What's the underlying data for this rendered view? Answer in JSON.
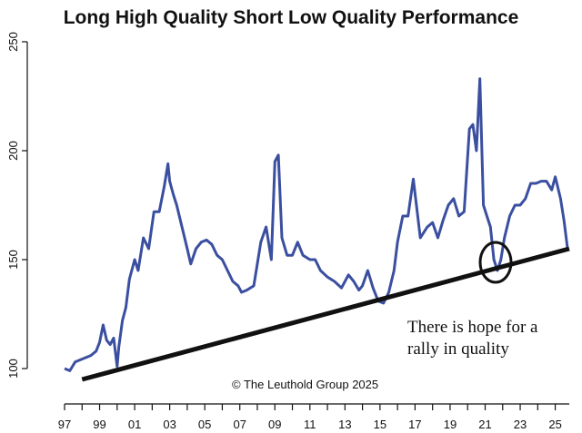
{
  "chart_data": {
    "type": "line",
    "title": "Long High Quality Short Low Quality Performance",
    "xlabel": "",
    "ylabel": "",
    "xlim": [
      1997.0,
      2025.8
    ],
    "ylim": [
      100,
      250
    ],
    "y_ticks": [
      100,
      150,
      200,
      250
    ],
    "x_tick_labels": [
      "97",
      "99",
      "01",
      "03",
      "05",
      "07",
      "09",
      "11",
      "13",
      "15",
      "17",
      "19",
      "21",
      "23",
      "25"
    ],
    "x_tick_positions": [
      1997,
      1999,
      2001,
      2003,
      2005,
      2007,
      2009,
      2011,
      2013,
      2015,
      2017,
      2019,
      2021,
      2023,
      2025
    ],
    "series": [
      {
        "color": "#3b4fa0",
        "x": [
          1997.0,
          1997.3,
          1997.6,
          1997.9,
          1998.2,
          1998.5,
          1998.8,
          1999.0,
          1999.2,
          1999.4,
          1999.6,
          1999.8,
          2000.0,
          2000.1,
          2000.3,
          2000.5,
          2000.7,
          2001.0,
          2001.2,
          2001.5,
          2001.8,
          2002.1,
          2002.4,
          2002.7,
          2002.9,
          2003.0,
          2003.2,
          2003.4,
          2003.7,
          2004.0,
          2004.2,
          2004.5,
          2004.8,
          2005.1,
          2005.4,
          2005.7,
          2006.0,
          2006.3,
          2006.6,
          2006.9,
          2007.1,
          2007.4,
          2007.8,
          2008.2,
          2008.5,
          2008.8,
          2009.0,
          2009.2,
          2009.4,
          2009.7,
          2010.0,
          2010.3,
          2010.6,
          2011.0,
          2011.3,
          2011.6,
          2012.0,
          2012.4,
          2012.8,
          2013.2,
          2013.5,
          2013.8,
          2014.0,
          2014.3,
          2014.6,
          2014.9,
          2015.2,
          2015.5,
          2015.8,
          2016.0,
          2016.3,
          2016.6,
          2016.9,
          2017.3,
          2017.7,
          2018.0,
          2018.3,
          2018.6,
          2018.9,
          2019.2,
          2019.5,
          2019.8,
          2020.1,
          2020.3,
          2020.5,
          2020.7,
          2020.9,
          2021.1,
          2021.3,
          2021.5,
          2021.7,
          2021.9,
          2022.1,
          2022.4,
          2022.7,
          2023.0,
          2023.3,
          2023.6,
          2023.9,
          2024.2,
          2024.5,
          2024.8,
          2025.0,
          2025.3,
          2025.5,
          2025.7
        ],
        "y": [
          100,
          99,
          103,
          104,
          105,
          106,
          108,
          112,
          120,
          113,
          111,
          114,
          101,
          110,
          122,
          128,
          141,
          150,
          145,
          160,
          155,
          172,
          172,
          184,
          194,
          186,
          180,
          175,
          165,
          155,
          148,
          155,
          158,
          159,
          157,
          152,
          150,
          145,
          140,
          138,
          135,
          136,
          138,
          158,
          165,
          150,
          195,
          198,
          160,
          152,
          152,
          158,
          152,
          150,
          150,
          145,
          142,
          140,
          137,
          143,
          140,
          136,
          138,
          145,
          137,
          131,
          130,
          135,
          145,
          158,
          170,
          170,
          187,
          160,
          165,
          167,
          160,
          168,
          175,
          178,
          170,
          172,
          210,
          212,
          200,
          233,
          175,
          170,
          165,
          150,
          145,
          150,
          160,
          170,
          175,
          175,
          178,
          185,
          185,
          186,
          186,
          182,
          188,
          178,
          168,
          155
        ]
      }
    ],
    "trendline": {
      "x": [
        1998.0,
        2025.8
      ],
      "y": [
        95,
        155
      ]
    },
    "annotations": [
      "There is hope for a",
      "rally in quality"
    ],
    "copyright": "© The Leuthold Group 2025",
    "grid": false,
    "legend": "none"
  }
}
